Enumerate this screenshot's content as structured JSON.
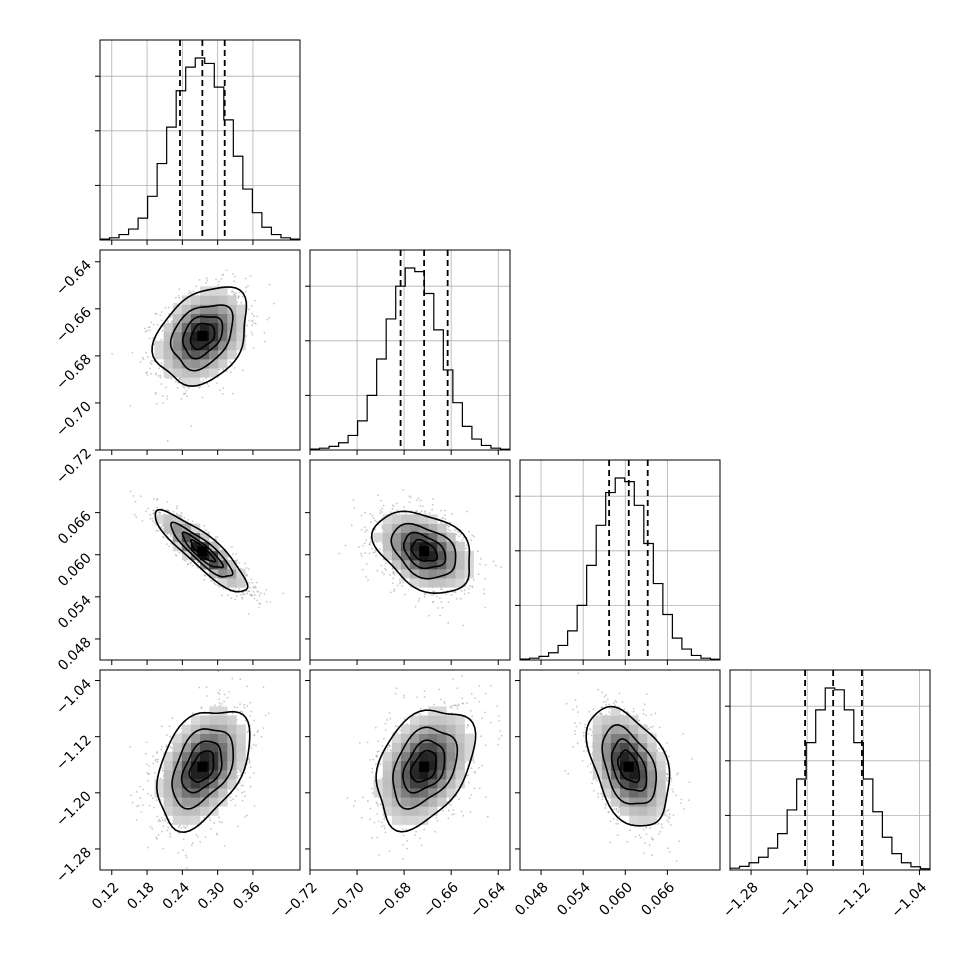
{
  "chart_data": {
    "type": "corner",
    "parameters": [
      {
        "id": "p0",
        "range": [
          0.1,
          0.44
        ],
        "ticks": [
          "0.12",
          "0.18",
          "0.24",
          "0.30",
          "0.36"
        ],
        "tick_values": [
          0.12,
          0.18,
          0.24,
          0.3,
          0.36
        ],
        "quantiles": [
          0.236,
          0.274,
          0.312
        ],
        "mean": 0.274,
        "sd": 0.038
      },
      {
        "id": "p1",
        "range": [
          -0.72,
          -0.635
        ],
        "ticks": [
          "−0.72",
          "−0.70",
          "−0.68",
          "−0.66",
          "−0.64"
        ],
        "tick_values": [
          -0.72,
          -0.7,
          -0.68,
          -0.66,
          -0.64
        ],
        "quantiles": [
          -0.6815,
          -0.6715,
          -0.6615
        ],
        "mean": -0.6715,
        "sd": 0.01
      },
      {
        "id": "p2",
        "range": [
          0.045,
          0.0735
        ],
        "ticks": [
          "0.048",
          "0.054",
          "0.060",
          "0.066"
        ],
        "tick_values": [
          0.048,
          0.054,
          0.06,
          0.066
        ],
        "quantiles": [
          0.0577,
          0.0605,
          0.0632
        ],
        "mean": 0.0605,
        "sd": 0.0028
      },
      {
        "id": "p3",
        "range": [
          -1.31,
          -1.025
        ],
        "ticks": [
          "−1.28",
          "−1.20",
          "−1.12",
          "−1.04"
        ],
        "tick_values": [
          -1.28,
          -1.2,
          -1.12,
          -1.04
        ],
        "quantiles": [
          -1.203,
          -1.163,
          -1.122
        ],
        "mean": -1.163,
        "sd": 0.041
      }
    ],
    "correlations": [
      [
        1,
        0.3,
        -0.88,
        0.4
      ],
      [
        0.3,
        1,
        -0.35,
        0.35
      ],
      [
        -0.88,
        -0.35,
        1,
        -0.4
      ],
      [
        0.4,
        0.35,
        -0.4,
        1
      ]
    ],
    "histograms": [
      {
        "param": "p0",
        "counts": [
          0.005,
          0.012,
          0.03,
          0.06,
          0.12,
          0.24,
          0.42,
          0.62,
          0.82,
          0.95,
          1.0,
          0.97,
          0.84,
          0.66,
          0.46,
          0.28,
          0.15,
          0.07,
          0.03,
          0.012,
          0.005
        ]
      },
      {
        "param": "p1",
        "counts": [
          0.005,
          0.01,
          0.02,
          0.04,
          0.08,
          0.16,
          0.3,
          0.5,
          0.72,
          0.9,
          1.0,
          0.98,
          0.86,
          0.66,
          0.44,
          0.26,
          0.13,
          0.06,
          0.025,
          0.01,
          0.004
        ]
      },
      {
        "param": "p2",
        "counts": [
          0.005,
          0.01,
          0.02,
          0.04,
          0.08,
          0.16,
          0.3,
          0.52,
          0.74,
          0.92,
          1.0,
          0.98,
          0.85,
          0.64,
          0.42,
          0.25,
          0.12,
          0.06,
          0.025,
          0.01,
          0.004
        ]
      },
      {
        "param": "p3",
        "counts": [
          0.01,
          0.02,
          0.04,
          0.07,
          0.12,
          0.2,
          0.33,
          0.5,
          0.7,
          0.88,
          1.0,
          0.99,
          0.88,
          0.7,
          0.5,
          0.32,
          0.18,
          0.09,
          0.04,
          0.018,
          0.007
        ]
      }
    ],
    "grid": true,
    "contour_levels_sigma": [
      0.5,
      1.0,
      1.5,
      2.0
    ]
  }
}
